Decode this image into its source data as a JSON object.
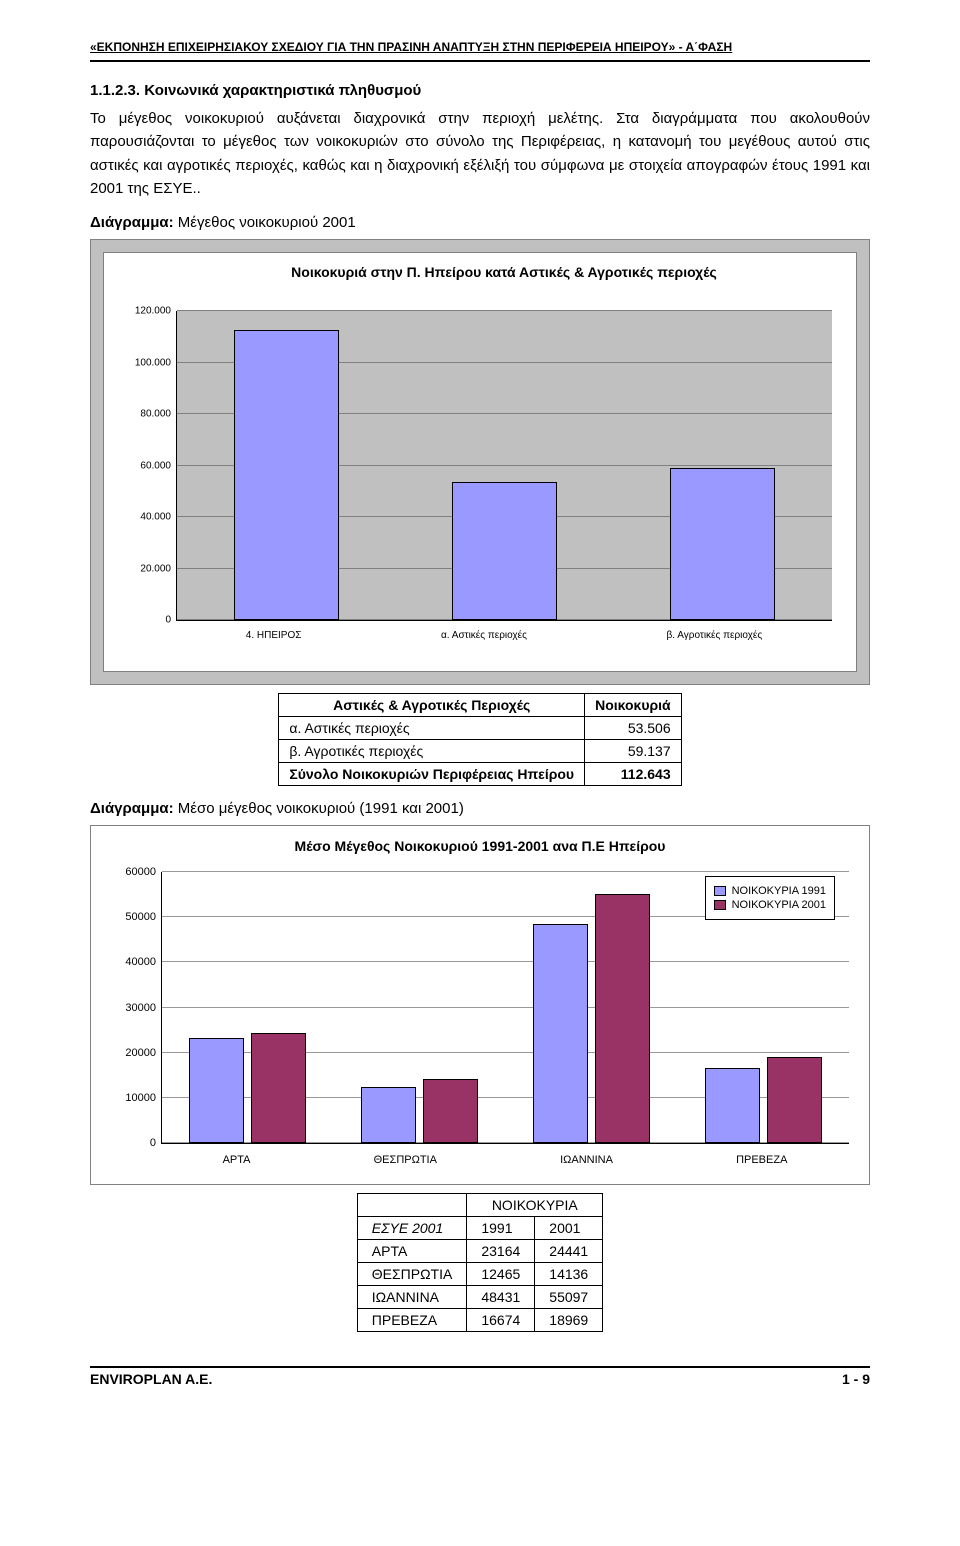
{
  "doc": {
    "header": "«ΕΚΠΟΝΗΣΗ ΕΠΙΧΕΙΡΗΣΙΑΚΟΥ ΣΧΕΔΙΟΥ ΓΙΑ ΤΗΝ ΠΡΑΣΙΝΗ ΑΝΑΠΤΥΞΗ ΣΤΗΝ ΠΕΡΙΦΕΡΕΙΑ ΗΠΕΙΡΟΥ» - Α΄ΦΑΣΗ",
    "section_heading": "1.1.2.3. Κοινωνικά χαρακτηριστικά πληθυσμού",
    "paragraph": "Το μέγεθος νοικοκυριού αυξάνεται διαχρονικά στην περιοχή μελέτης. Στα διαγράμματα που ακολουθούν παρουσιάζονται το μέγεθος των νοικοκυριών στο σύνολο της Περιφέρειας, η κατανομή του μεγέθους αυτού στις αστικές και αγροτικές περιοχές, καθώς και η διαχρονική εξέλιξή του σύμφωνα με στοιχεία απογραφών έτους 1991 και 2001 της ΕΣΥΕ..",
    "diagram1_label_prefix": "Διάγραμμα: ",
    "diagram1_label": "Μέγεθος νοικοκυριού  2001",
    "diagram2_label_prefix": "Διάγραμμα: ",
    "diagram2_label": "Μέσο μέγεθος νοικοκυριού (1991 και 2001)",
    "footer_left": "ENVIROPLAN A.E.",
    "footer_right": "1 - 9"
  },
  "chart1": {
    "type": "bar",
    "title": "Νοικοκυριά στην Π. Ηπείρου κατά Αστικές & Αγροτικές περιοχές",
    "categories": [
      "4. ΗΠΕΙΡΟΣ",
      "α. Αστικές περιοχές",
      "β. Αγροτικές περιοχές"
    ],
    "values": [
      112643,
      53506,
      59137
    ],
    "ylim": [
      0,
      120000
    ],
    "ytick_step": 20000,
    "yticks": [
      "0",
      "20.000",
      "40.000",
      "60.000",
      "80.000",
      "100.000",
      "120.000"
    ],
    "bar_color": "#9999ff",
    "plot_bg": "#c0c0c0",
    "grid_color": "#808080",
    "border_color": "#000000",
    "title_fontsize": 14,
    "label_fontsize": 10
  },
  "table1": {
    "header": [
      "Αστικές & Αγροτικές Περιοχές",
      "Νοικοκυριά"
    ],
    "rows": [
      [
        "α. Αστικές περιοχές",
        "53.506"
      ],
      [
        "β. Αγροτικές περιοχές",
        "59.137"
      ]
    ],
    "total_label": "Σύνολο Νοικοκυριών Περιφέρειας Ηπείρου",
    "total_value": "112.643"
  },
  "chart2": {
    "type": "grouped-bar",
    "title": "Μέσο Μέγεθος Νοικοκυριού 1991-2001 ανα Π.Ε Ηπείρου",
    "categories": [
      "ΑΡΤΑ",
      "ΘΕΣΠΡΩΤΙΑ",
      "ΙΩΑΝΝΙΝΑ",
      "ΠΡΕΒΕΖΑ"
    ],
    "series": [
      {
        "name": "ΝΟΙΚΟΚΥΡΙΑ 1991",
        "color": "#9999ff",
        "values": [
          23164,
          12465,
          48431,
          16674
        ]
      },
      {
        "name": "ΝΟΙΚΟΚΥΡΙΑ 2001",
        "color": "#993366",
        "values": [
          24441,
          14136,
          55097,
          18969
        ]
      }
    ],
    "ylim": [
      0,
      60000
    ],
    "ytick_step": 10000,
    "yticks": [
      "0",
      "10000",
      "20000",
      "30000",
      "40000",
      "50000",
      "60000"
    ],
    "plot_bg": "#ffffff",
    "grid_color": "#999999",
    "border_color": "#000000",
    "title_fontsize": 14,
    "label_fontsize": 11
  },
  "table2": {
    "header_top": [
      "",
      "ΝΟΙΚΟΚΥΡΙΑ",
      ""
    ],
    "header": [
      "ΕΣΥΕ 2001",
      "1991",
      "2001"
    ],
    "rows": [
      [
        "ΑΡΤΑ",
        "23164",
        "24441"
      ],
      [
        "ΘΕΣΠΡΩΤΙΑ",
        "12465",
        "14136"
      ],
      [
        "ΙΩΑΝΝΙΝΑ",
        "48431",
        "55097"
      ],
      [
        "ΠΡΕΒΕΖΑ",
        "16674",
        "18969"
      ]
    ]
  }
}
